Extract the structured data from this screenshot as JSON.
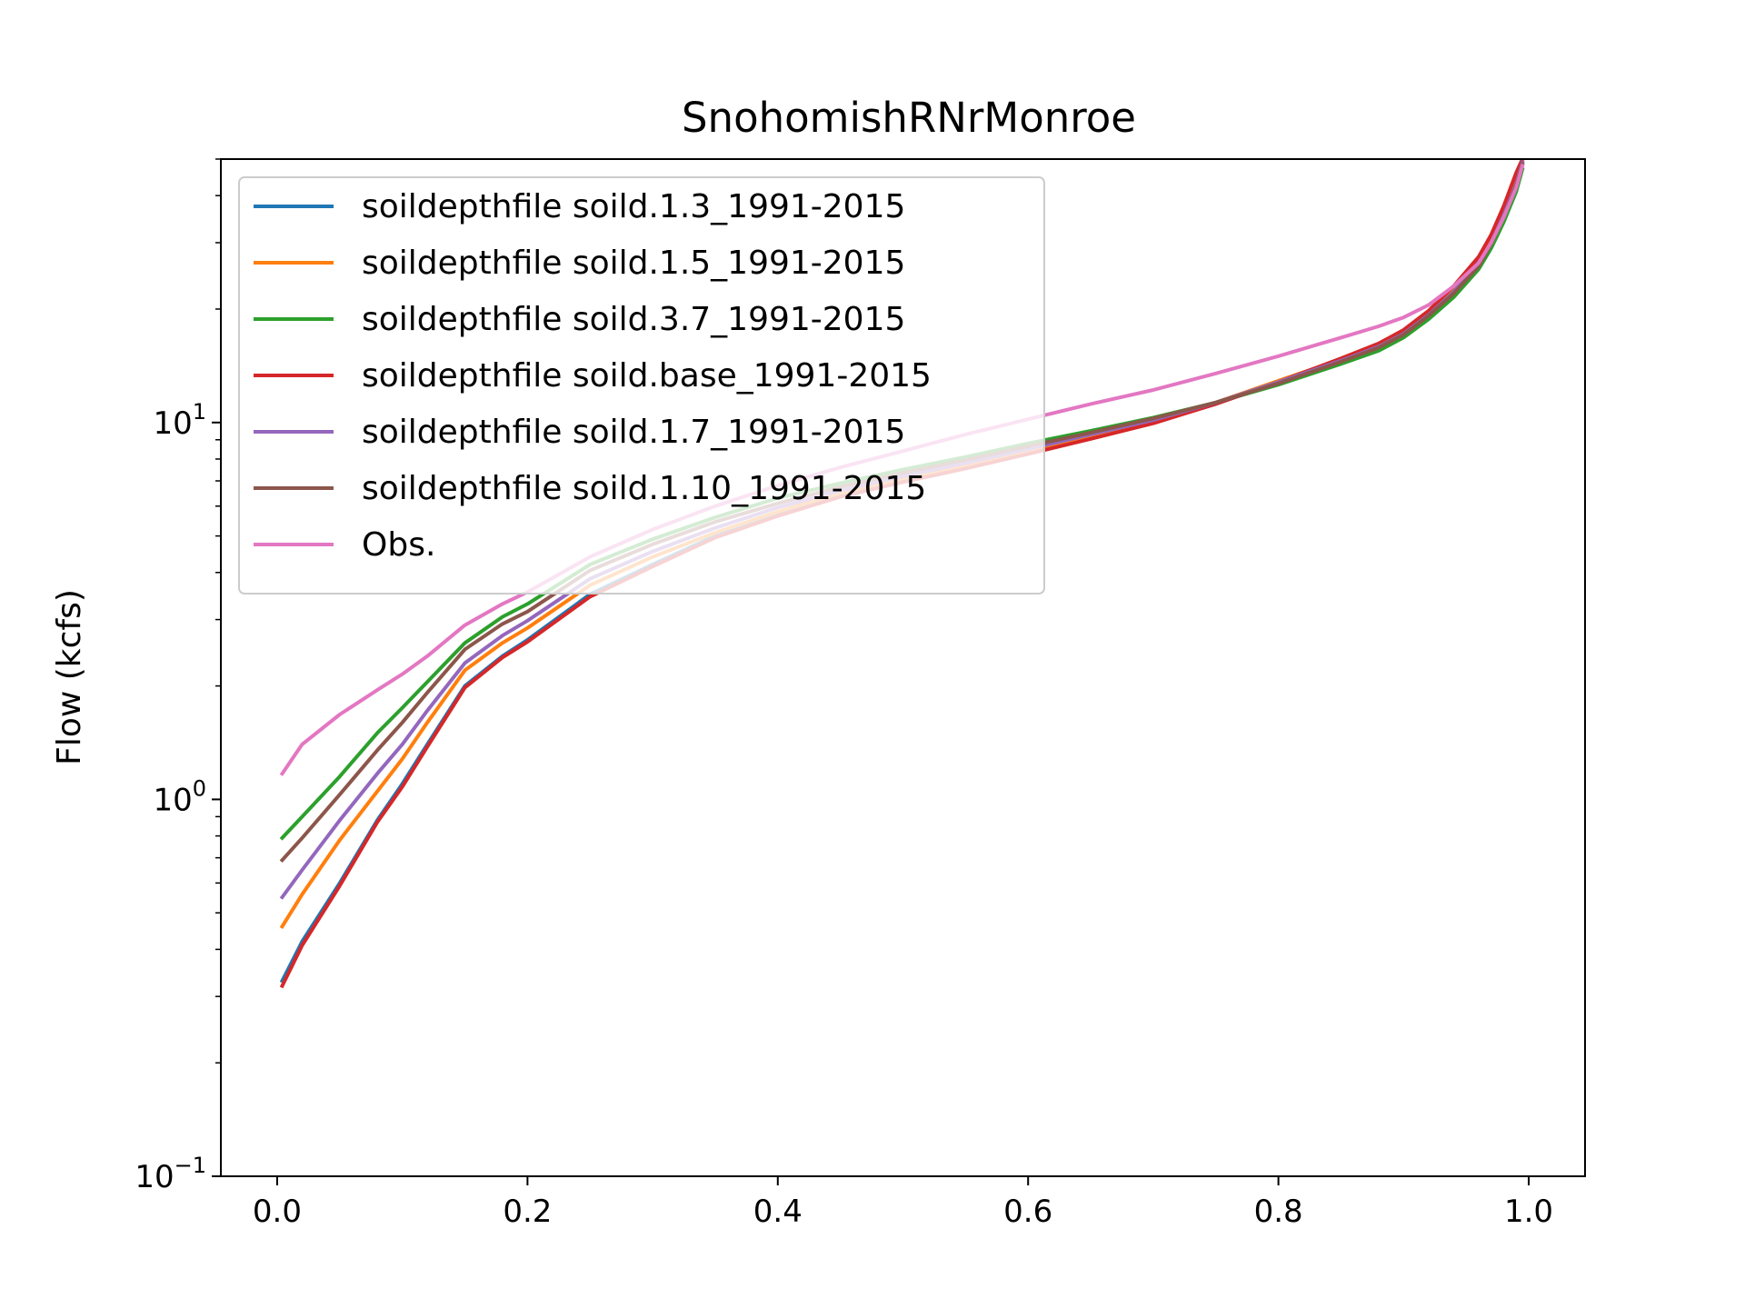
{
  "chart_data": {
    "type": "line",
    "title": "SnohomishRNrMonroe",
    "xlabel": "",
    "ylabel": "Flow (kcfs)",
    "xlim": [
      -0.045,
      1.045
    ],
    "ylim": [
      0.1,
      50
    ],
    "yscale": "log",
    "grid": false,
    "legend_position": "upper-left",
    "x_ticks": [
      {
        "value": 0.0,
        "label": "0.0"
      },
      {
        "value": 0.2,
        "label": "0.2"
      },
      {
        "value": 0.4,
        "label": "0.4"
      },
      {
        "value": 0.6,
        "label": "0.6"
      },
      {
        "value": 0.8,
        "label": "0.8"
      },
      {
        "value": 1.0,
        "label": "1.0"
      }
    ],
    "y_ticks": [
      {
        "value": 0.1,
        "base": "10",
        "exp": "−1"
      },
      {
        "value": 1,
        "base": "10",
        "exp": "0"
      },
      {
        "value": 10,
        "base": "10",
        "exp": "1"
      }
    ],
    "x": [
      0.004,
      0.02,
      0.05,
      0.08,
      0.1,
      0.12,
      0.15,
      0.18,
      0.2,
      0.25,
      0.3,
      0.35,
      0.4,
      0.45,
      0.5,
      0.55,
      0.6,
      0.65,
      0.7,
      0.75,
      0.8,
      0.85,
      0.88,
      0.9,
      0.92,
      0.94,
      0.96,
      0.97,
      0.98,
      0.99,
      0.995
    ],
    "series": [
      {
        "name": "soildepthfile soild.1.3_1991-2015",
        "color": "#1f77b4",
        "values": [
          0.33,
          0.42,
          0.6,
          0.88,
          1.1,
          1.4,
          2.0,
          2.4,
          2.65,
          3.5,
          4.2,
          5.0,
          5.7,
          6.4,
          7.0,
          7.6,
          8.3,
          9.1,
          10.0,
          11.2,
          12.8,
          14.7,
          16.0,
          17.3,
          19.5,
          22.5,
          27.0,
          31.0,
          37.0,
          45.0,
          50.0
        ]
      },
      {
        "name": "soildepthfile soild.1.5_1991-2015",
        "color": "#ff7f0e",
        "values": [
          0.46,
          0.56,
          0.78,
          1.05,
          1.28,
          1.6,
          2.2,
          2.6,
          2.85,
          3.7,
          4.4,
          5.1,
          5.8,
          6.5,
          7.1,
          7.7,
          8.4,
          9.2,
          10.1,
          11.3,
          12.9,
          14.7,
          16.0,
          17.3,
          19.4,
          22.3,
          26.5,
          30.5,
          36.5,
          45.0,
          50.0
        ]
      },
      {
        "name": "soildepthfile soild.3.7_1991-2015",
        "color": "#2ca02c",
        "values": [
          0.79,
          0.9,
          1.15,
          1.5,
          1.75,
          2.05,
          2.6,
          3.05,
          3.3,
          4.2,
          4.9,
          5.6,
          6.3,
          6.9,
          7.5,
          8.1,
          8.8,
          9.5,
          10.3,
          11.3,
          12.6,
          14.3,
          15.5,
          16.8,
          18.8,
          21.5,
          25.5,
          29.0,
          34.0,
          41.0,
          47.0
        ]
      },
      {
        "name": "soildepthfile soild.base_1991-2015",
        "color": "#d62728",
        "values": [
          0.32,
          0.41,
          0.59,
          0.87,
          1.08,
          1.38,
          1.98,
          2.38,
          2.62,
          3.45,
          4.15,
          4.95,
          5.65,
          6.35,
          6.95,
          7.55,
          8.25,
          9.05,
          9.95,
          11.2,
          12.8,
          14.8,
          16.2,
          17.6,
          19.8,
          23.0,
          27.5,
          31.5,
          37.5,
          46.0,
          50.0
        ]
      },
      {
        "name": "soildepthfile soild.1.7_1991-2015",
        "color": "#9467bd",
        "values": [
          0.55,
          0.65,
          0.88,
          1.17,
          1.4,
          1.72,
          2.3,
          2.72,
          2.98,
          3.85,
          4.55,
          5.25,
          5.95,
          6.6,
          7.2,
          7.8,
          8.5,
          9.3,
          10.15,
          11.3,
          12.8,
          14.6,
          15.9,
          17.2,
          19.3,
          22.2,
          26.3,
          30.0,
          35.5,
          43.0,
          49.0
        ]
      },
      {
        "name": "soildepthfile soild.1.10_1991-2015",
        "color": "#8c564b",
        "values": [
          0.69,
          0.79,
          1.03,
          1.35,
          1.6,
          1.92,
          2.5,
          2.92,
          3.15,
          4.05,
          4.75,
          5.45,
          6.1,
          6.75,
          7.35,
          7.95,
          8.65,
          9.4,
          10.25,
          11.3,
          12.7,
          14.5,
          15.8,
          17.1,
          19.2,
          22.0,
          26.0,
          29.8,
          35.0,
          42.5,
          48.5
        ]
      },
      {
        "name": "Obs.",
        "color": "#e377c2",
        "values": [
          1.17,
          1.4,
          1.68,
          1.95,
          2.15,
          2.4,
          2.9,
          3.3,
          3.55,
          4.4,
          5.2,
          6.0,
          6.8,
          7.6,
          8.4,
          9.3,
          10.2,
          11.2,
          12.2,
          13.5,
          15.0,
          16.8,
          18.0,
          19.0,
          20.5,
          23.0,
          26.5,
          30.0,
          35.0,
          42.0,
          48.0
        ]
      }
    ]
  }
}
